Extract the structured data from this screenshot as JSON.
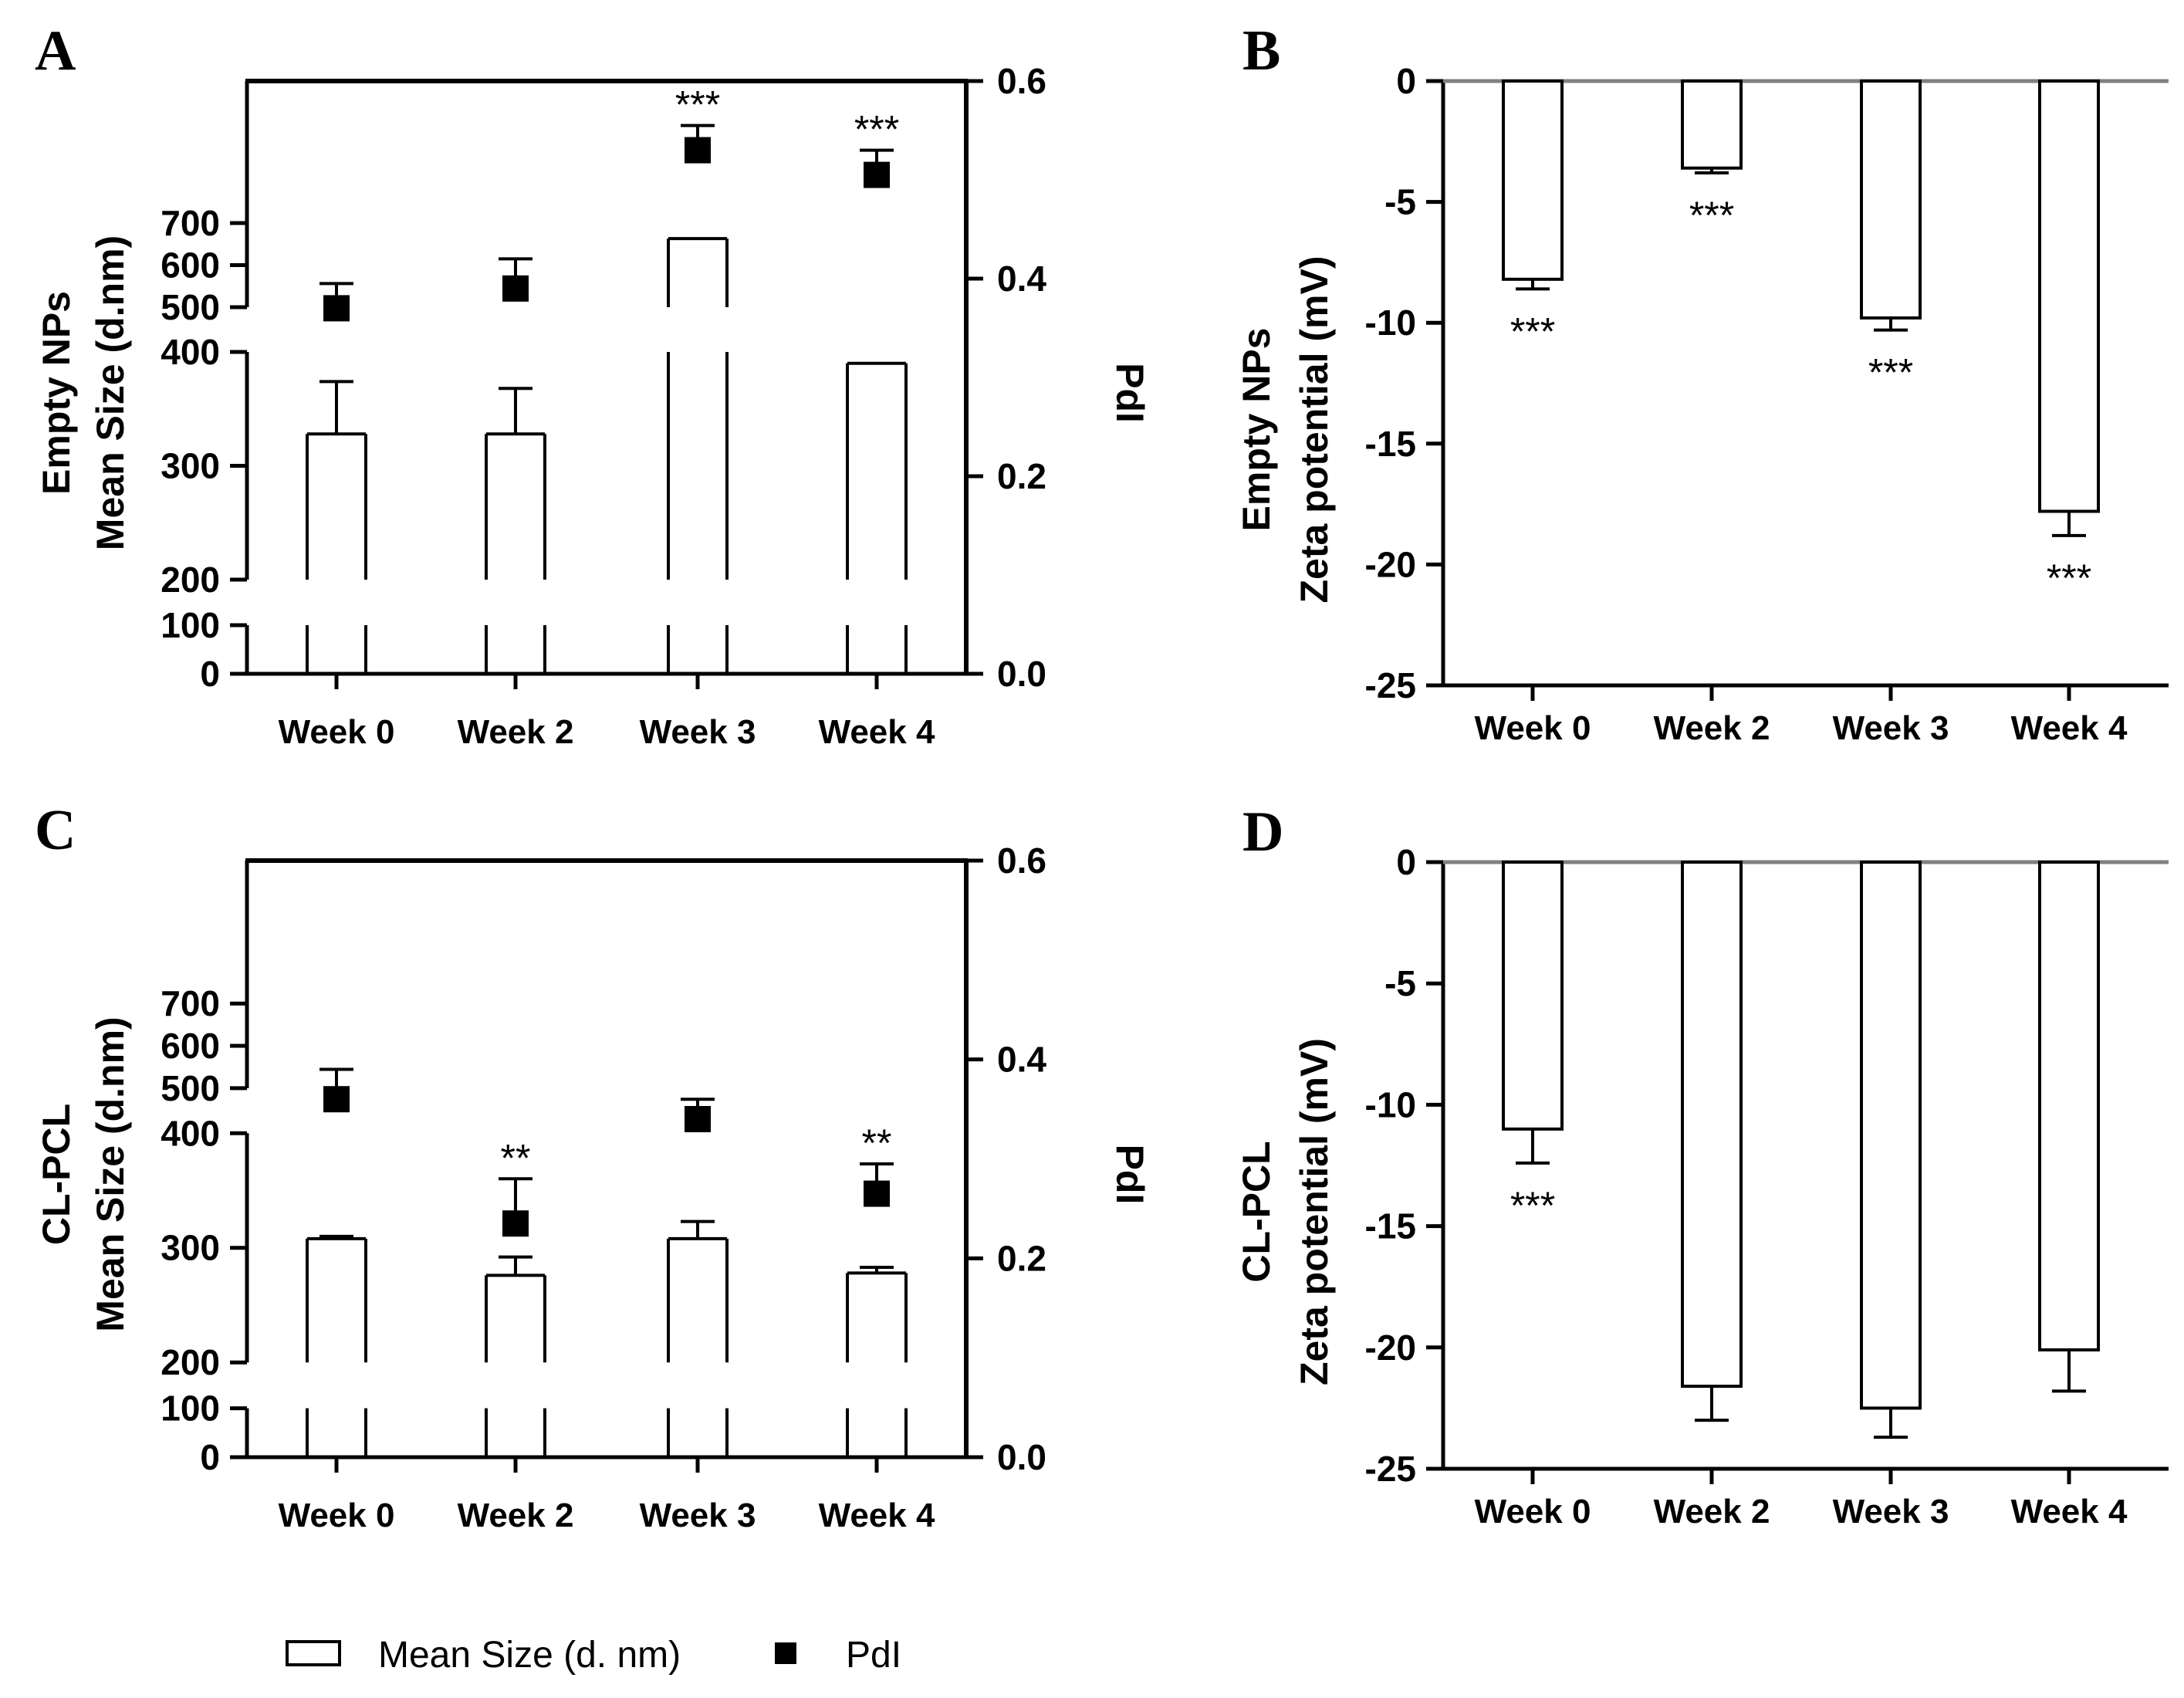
{
  "legend": {
    "bar_label": "Mean Size (d. nm)",
    "marker_label": "PdI"
  },
  "chart_data": [
    {
      "panel": "A",
      "type": "bar",
      "categories": [
        "Week 0",
        "Week 2",
        "Week 3",
        "Week 4"
      ],
      "ylabel": [
        "Empty NPs",
        "Mean Size (d.nm)"
      ],
      "y2label": "PdI",
      "y_ticks": [
        0,
        100,
        200,
        300,
        400,
        500,
        600,
        700
      ],
      "y2_ticks": [
        "0.0",
        "0.2",
        "0.4",
        "0.6"
      ],
      "y2lim": [
        0,
        0.6
      ],
      "series": [
        {
          "name": "Mean Size (d. nm)",
          "axis": "left",
          "values": [
            328,
            328,
            663,
            390
          ],
          "errors": [
            46,
            40,
            0,
            0
          ]
        },
        {
          "name": "PdI",
          "axis": "right",
          "values": [
            0.37,
            0.39,
            0.53,
            0.505
          ],
          "errors": [
            0.025,
            0.03,
            0.025,
            0.025
          ]
        }
      ],
      "annotations": [
        "",
        "",
        "***",
        "***"
      ]
    },
    {
      "panel": "B",
      "type": "bar",
      "categories": [
        "Week 0",
        "Week 2",
        "Week 3",
        "Week 4"
      ],
      "ylabel": [
        "Empty NPs",
        "Zeta potential (mV)"
      ],
      "ylim": [
        -25,
        0
      ],
      "y_ticks": [
        "0",
        "-5",
        "-10",
        "-15",
        "-20",
        "-25"
      ],
      "series": [
        {
          "name": "Zeta potential (mV)",
          "values": [
            -8.2,
            -3.6,
            -9.8,
            -17.8
          ],
          "errors": [
            0.4,
            0.2,
            0.5,
            1.0
          ]
        }
      ],
      "annotations": [
        "***",
        "***",
        "***",
        "***"
      ]
    },
    {
      "panel": "C",
      "type": "bar",
      "categories": [
        "Week 0",
        "Week 2",
        "Week 3",
        "Week 4"
      ],
      "ylabel": [
        "CL-PCL",
        "Mean Size (d.nm)"
      ],
      "y2label": "PdI",
      "y_ticks": [
        0,
        100,
        200,
        300,
        400,
        500,
        600,
        700
      ],
      "y2_ticks": [
        "0.0",
        "0.2",
        "0.4",
        "0.6"
      ],
      "y2lim": [
        0,
        0.6
      ],
      "series": [
        {
          "name": "Mean Size (d. nm)",
          "axis": "left",
          "values": [
            308,
            276,
            308,
            278
          ],
          "errors": [
            2,
            16,
            15,
            5
          ]
        },
        {
          "name": "PdI",
          "axis": "right",
          "values": [
            0.36,
            0.235,
            0.34,
            0.265
          ],
          "errors": [
            0.03,
            0.045,
            0.02,
            0.03
          ]
        }
      ],
      "annotations": [
        "",
        "**",
        "",
        "**"
      ]
    },
    {
      "panel": "D",
      "type": "bar",
      "categories": [
        "Week 0",
        "Week 2",
        "Week 3",
        "Week 4"
      ],
      "ylabel": [
        "CL-PCL",
        "Zeta potential  (mV)"
      ],
      "ylim": [
        -25,
        0
      ],
      "y_ticks": [
        "0",
        "-5",
        "-10",
        "-15",
        "-20",
        "-25"
      ],
      "series": [
        {
          "name": "Zeta potential (mV)",
          "values": [
            -11.0,
            -21.6,
            -22.5,
            -20.1
          ],
          "errors": [
            1.4,
            1.4,
            1.2,
            1.7
          ]
        }
      ],
      "annotations": [
        "***",
        "",
        "",
        ""
      ]
    }
  ]
}
